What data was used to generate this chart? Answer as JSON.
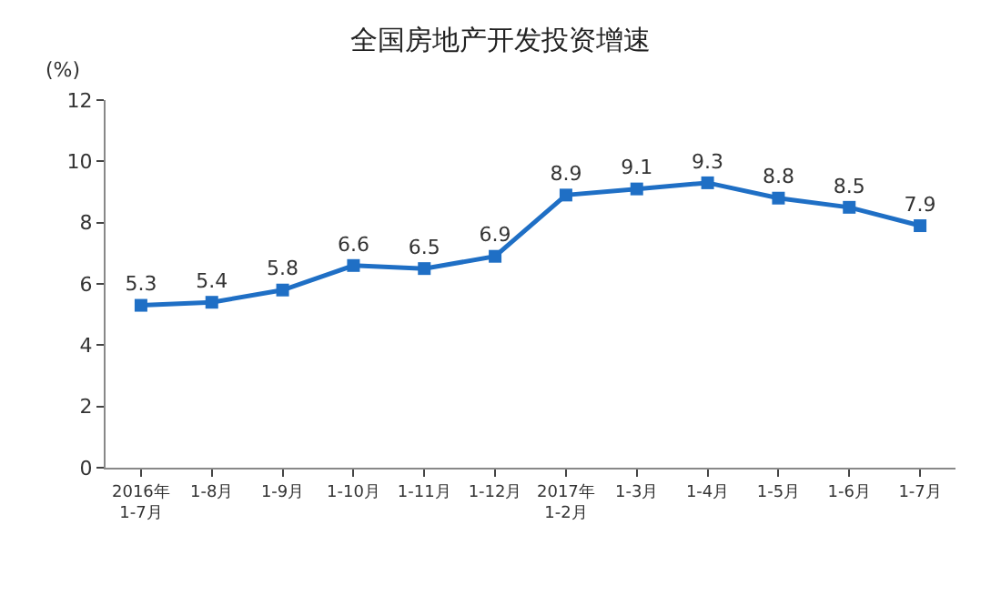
{
  "chart_data": {
    "type": "line",
    "title": "全国房地产开发投资增速",
    "ylabel": "(%)",
    "categories": [
      "2016年\n1-7月",
      "1-8月",
      "1-9月",
      "1-10月",
      "1-11月",
      "1-12月",
      "2017年\n1-2月",
      "1-3月",
      "1-4月",
      "1-5月",
      "1-6月",
      "1-7月"
    ],
    "series": [
      {
        "color": "#1f6fc5",
        "values": [
          5.3,
          5.4,
          5.8,
          6.6,
          6.5,
          6.9,
          8.9,
          9.1,
          9.3,
          8.8,
          8.5,
          7.9
        ]
      }
    ],
    "ylim": [
      0,
      12
    ],
    "yticks": [
      0,
      2,
      4,
      6,
      8,
      10,
      12
    ],
    "grid": false,
    "marker": "square",
    "line_style": "solid",
    "data_labels": true
  }
}
